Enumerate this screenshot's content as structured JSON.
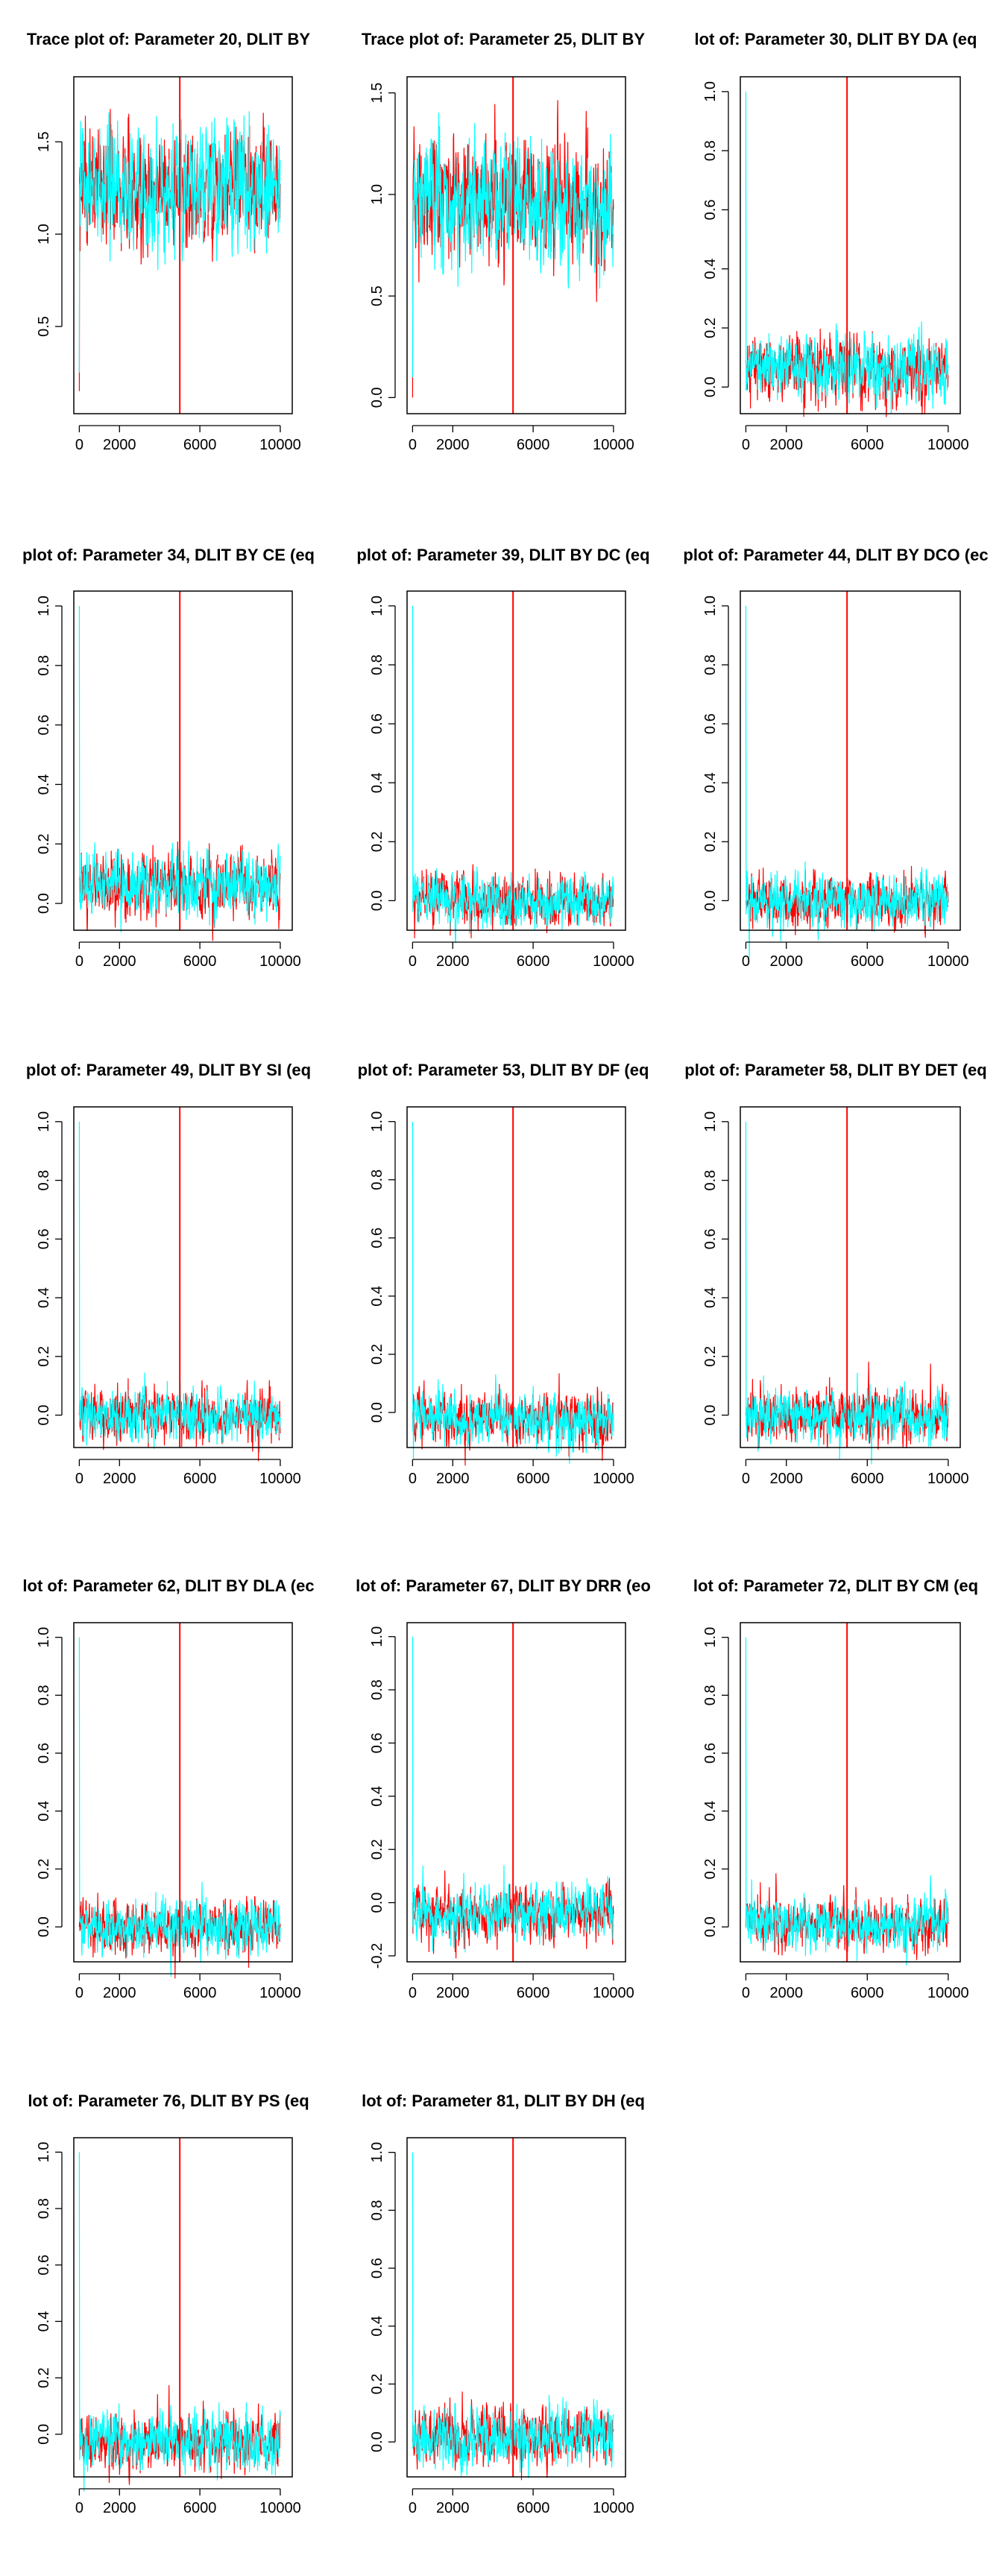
{
  "chart_data": [
    {
      "type": "line",
      "title": "Trace plot of: Parameter 20, DLIT BY",
      "xticks": [
        0,
        2000,
        6000,
        10000
      ],
      "yticks": [
        0.5,
        1.0,
        1.5
      ],
      "ytick_labels": [
        "0.5",
        "1.0",
        "1.5"
      ],
      "xlim": [
        -200,
        10300
      ],
      "ylim": [
        0.06,
        1.82
      ],
      "vline_x": 5000,
      "series": [
        {
          "color": "#ff0000",
          "start": 0.15,
          "center": 1.25,
          "spread": 0.15
        },
        {
          "color": "#00ffff",
          "start": 0.25,
          "center": 1.25,
          "spread": 0.15
        }
      ]
    },
    {
      "type": "line",
      "title": "Trace plot of: Parameter 25, DLIT BY",
      "xticks": [
        0,
        2000,
        6000,
        10000
      ],
      "yticks": [
        0.0,
        0.5,
        1.0,
        1.5
      ],
      "ytick_labels": [
        "0.0",
        "0.5",
        "1.0",
        "1.5"
      ],
      "xlim": [
        -200,
        10300
      ],
      "ylim": [
        -0.05,
        1.55
      ],
      "vline_x": 5000,
      "series": [
        {
          "color": "#ff0000",
          "start": 0.0,
          "center": 0.97,
          "spread": 0.14
        },
        {
          "color": "#00ffff",
          "start": 0.1,
          "center": 0.97,
          "spread": 0.14
        }
      ]
    },
    {
      "type": "line",
      "title": "lot of: Parameter 30, DLIT BY DA (eq",
      "xticks": [
        0,
        2000,
        6000,
        10000
      ],
      "yticks": [
        0.0,
        0.2,
        0.4,
        0.6,
        0.8,
        1.0
      ],
      "ytick_labels": [
        "0.0",
        "0.2",
        "0.4",
        "0.6",
        "0.8",
        "1.0"
      ],
      "xlim": [
        -200,
        10300
      ],
      "ylim": [
        -0.07,
        1.03
      ],
      "vline_x": 5000,
      "series": [
        {
          "color": "#ff0000",
          "start": 0.09,
          "center": 0.06,
          "spread": 0.05
        },
        {
          "color": "#00ffff",
          "start": 1.0,
          "center": 0.06,
          "spread": 0.05
        }
      ]
    },
    {
      "type": "line",
      "title": "plot of: Parameter 34, DLIT BY CE (eq",
      "xticks": [
        0,
        2000,
        6000,
        10000
      ],
      "yticks": [
        0.0,
        0.2,
        0.4,
        0.6,
        0.8,
        1.0
      ],
      "ytick_labels": [
        "0.0",
        "0.2",
        "0.4",
        "0.6",
        "0.8",
        "1.0"
      ],
      "xlim": [
        -200,
        10300
      ],
      "ylim": [
        -0.07,
        1.03
      ],
      "vline_x": 5000,
      "series": [
        {
          "color": "#ff0000",
          "start": 0.08,
          "center": 0.06,
          "spread": 0.05
        },
        {
          "color": "#00ffff",
          "start": 1.0,
          "center": 0.06,
          "spread": 0.05
        }
      ]
    },
    {
      "type": "line",
      "title": "plot of: Parameter 39, DLIT BY DC (eq",
      "xticks": [
        0,
        2000,
        6000,
        10000
      ],
      "yticks": [
        0.0,
        0.2,
        0.4,
        0.6,
        0.8,
        1.0
      ],
      "ytick_labels": [
        "0.0",
        "0.2",
        "0.4",
        "0.6",
        "0.8",
        "1.0"
      ],
      "xlim": [
        -200,
        10300
      ],
      "ylim": [
        -0.08,
        1.03
      ],
      "vline_x": 5000,
      "series": [
        {
          "color": "#ff0000",
          "start": 0.0,
          "center": 0.0,
          "spread": 0.04
        },
        {
          "color": "#00ffff",
          "start": 1.0,
          "center": 0.0,
          "spread": 0.04
        }
      ]
    },
    {
      "type": "line",
      "title": "plot of: Parameter 44, DLIT BY DCO (ec",
      "xticks": [
        0,
        2000,
        6000,
        10000
      ],
      "yticks": [
        0.0,
        0.2,
        0.4,
        0.6,
        0.8,
        1.0
      ],
      "ytick_labels": [
        "0.0",
        "0.2",
        "0.4",
        "0.6",
        "0.8",
        "1.0"
      ],
      "xlim": [
        -200,
        10300
      ],
      "ylim": [
        -0.08,
        1.03
      ],
      "vline_x": 5000,
      "series": [
        {
          "color": "#ff0000",
          "start": 0.0,
          "center": 0.0,
          "spread": 0.04
        },
        {
          "color": "#00ffff",
          "start": 1.0,
          "center": 0.0,
          "spread": 0.04
        }
      ]
    },
    {
      "type": "line",
      "title": "plot of: Parameter 49, DLIT BY SI (eq",
      "xticks": [
        0,
        2000,
        6000,
        10000
      ],
      "yticks": [
        0.0,
        0.2,
        0.4,
        0.6,
        0.8,
        1.0
      ],
      "ytick_labels": [
        "0.0",
        "0.2",
        "0.4",
        "0.6",
        "0.8",
        "1.0"
      ],
      "xlim": [
        -200,
        10300
      ],
      "ylim": [
        -0.09,
        1.03
      ],
      "vline_x": 5000,
      "series": [
        {
          "color": "#ff0000",
          "start": 0.0,
          "center": 0.0,
          "spread": 0.04
        },
        {
          "color": "#00ffff",
          "start": 1.0,
          "center": 0.0,
          "spread": 0.04
        }
      ]
    },
    {
      "type": "line",
      "title": "plot of: Parameter 53, DLIT BY DF (eq",
      "xticks": [
        0,
        2000,
        6000,
        10000
      ],
      "yticks": [
        0.0,
        0.2,
        0.4,
        0.6,
        0.8,
        1.0
      ],
      "ytick_labels": [
        "0.0",
        "0.2",
        "0.4",
        "0.6",
        "0.8",
        "1.0"
      ],
      "xlim": [
        -200,
        10300
      ],
      "ylim": [
        -0.1,
        1.03
      ],
      "vline_x": 5000,
      "series": [
        {
          "color": "#ff0000",
          "start": 0.0,
          "center": -0.02,
          "spread": 0.04
        },
        {
          "color": "#00ffff",
          "start": 1.0,
          "center": -0.02,
          "spread": 0.04
        }
      ]
    },
    {
      "type": "line",
      "title": "plot of: Parameter 58, DLIT BY DET (eq",
      "xticks": [
        0,
        2000,
        6000,
        10000
      ],
      "yticks": [
        0.0,
        0.2,
        0.4,
        0.6,
        0.8,
        1.0
      ],
      "ytick_labels": [
        "0.0",
        "0.2",
        "0.4",
        "0.6",
        "0.8",
        "1.0"
      ],
      "xlim": [
        -200,
        10300
      ],
      "ylim": [
        -0.09,
        1.03
      ],
      "vline_x": 5000,
      "series": [
        {
          "color": "#ff0000",
          "start": 0.0,
          "center": 0.0,
          "spread": 0.04
        },
        {
          "color": "#00ffff",
          "start": 1.0,
          "center": 0.0,
          "spread": 0.04
        }
      ]
    },
    {
      "type": "line",
      "title": "lot of: Parameter 62, DLIT BY DLA (ec",
      "xticks": [
        0,
        2000,
        6000,
        10000
      ],
      "yticks": [
        0.0,
        0.2,
        0.4,
        0.6,
        0.8,
        1.0
      ],
      "ytick_labels": [
        "0.0",
        "0.2",
        "0.4",
        "0.6",
        "0.8",
        "1.0"
      ],
      "xlim": [
        -200,
        10300
      ],
      "ylim": [
        -0.1,
        1.03
      ],
      "vline_x": 5000,
      "series": [
        {
          "color": "#ff0000",
          "start": 0.0,
          "center": 0.0,
          "spread": 0.04
        },
        {
          "color": "#00ffff",
          "start": 1.0,
          "center": 0.0,
          "spread": 0.04
        }
      ]
    },
    {
      "type": "line",
      "title": "lot of: Parameter 67, DLIT BY DRR (eo",
      "xticks": [
        0,
        2000,
        6000,
        10000
      ],
      "yticks": [
        -0.2,
        0.0,
        0.2,
        0.4,
        0.6,
        0.8,
        1.0
      ],
      "ytick_labels": [
        "-0.2",
        "0.0",
        "0.2",
        "0.4",
        "0.6",
        "0.8",
        "1.0"
      ],
      "xlim": [
        -200,
        10300
      ],
      "ylim": [
        -0.2,
        1.03
      ],
      "vline_x": 5000,
      "series": [
        {
          "color": "#ff0000",
          "start": 0.0,
          "center": -0.04,
          "spread": 0.045
        },
        {
          "color": "#00ffff",
          "start": 1.0,
          "center": -0.04,
          "spread": 0.045
        }
      ]
    },
    {
      "type": "line",
      "title": "lot of: Parameter 72, DLIT BY CM (eq",
      "xticks": [
        0,
        2000,
        6000,
        10000
      ],
      "yticks": [
        0.0,
        0.2,
        0.4,
        0.6,
        0.8,
        1.0
      ],
      "ytick_labels": [
        "0.0",
        "0.2",
        "0.4",
        "0.6",
        "0.8",
        "1.0"
      ],
      "xlim": [
        -200,
        10300
      ],
      "ylim": [
        -0.1,
        1.03
      ],
      "vline_x": 5000,
      "series": [
        {
          "color": "#ff0000",
          "start": 0.0,
          "center": 0.01,
          "spread": 0.04
        },
        {
          "color": "#00ffff",
          "start": 1.0,
          "center": 0.01,
          "spread": 0.04
        }
      ]
    },
    {
      "type": "line",
      "title": "lot of: Parameter 76, DLIT BY PS (eq",
      "xticks": [
        0,
        2000,
        6000,
        10000
      ],
      "yticks": [
        0.0,
        0.2,
        0.4,
        0.6,
        0.8,
        1.0
      ],
      "ytick_labels": [
        "0.0",
        "0.2",
        "0.4",
        "0.6",
        "0.8",
        "1.0"
      ],
      "xlim": [
        -200,
        10300
      ],
      "ylim": [
        -0.13,
        1.03
      ],
      "vline_x": 5000,
      "series": [
        {
          "color": "#ff0000",
          "start": 0.0,
          "center": -0.03,
          "spread": 0.045
        },
        {
          "color": "#00ffff",
          "start": 1.0,
          "center": -0.03,
          "spread": 0.045
        }
      ]
    },
    {
      "type": "line",
      "title": "lot of: Parameter 81, DLIT BY DH (eq",
      "xticks": [
        0,
        2000,
        6000,
        10000
      ],
      "yticks": [
        0.0,
        0.2,
        0.4,
        0.6,
        0.8,
        1.0
      ],
      "ytick_labels": [
        "0.0",
        "0.2",
        "0.4",
        "0.6",
        "0.8",
        "1.0"
      ],
      "xlim": [
        -200,
        10300
      ],
      "ylim": [
        -0.1,
        1.03
      ],
      "vline_x": 5000,
      "series": [
        {
          "color": "#ff0000",
          "start": 0.0,
          "center": 0.02,
          "spread": 0.045
        },
        {
          "color": "#00ffff",
          "start": 1.0,
          "center": 0.02,
          "spread": 0.045
        }
      ]
    }
  ]
}
